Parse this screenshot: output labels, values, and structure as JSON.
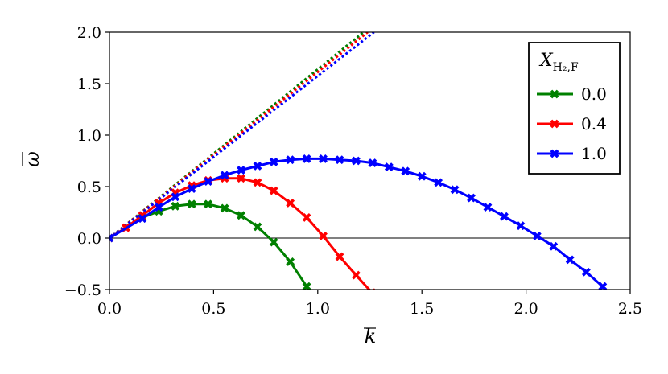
{
  "chart_data": {
    "type": "line",
    "xlabel": "k",
    "ylabel": "ω",
    "xlim": [
      0.0,
      2.5
    ],
    "ylim": [
      -0.5,
      2.0
    ],
    "xticks": [
      "0.0",
      "0.5",
      "1.0",
      "1.5",
      "2.0",
      "2.5"
    ],
    "yticks": [
      "−0.5",
      "0.0",
      "0.5",
      "1.0",
      "1.5",
      "2.0"
    ],
    "grid": false,
    "zero_line": true,
    "legend": {
      "placement": "top-right",
      "title_main": "X",
      "title_sub": "H₂,F"
    },
    "series": [
      {
        "name": "0.0",
        "color": "#008000",
        "marker": "x-filled",
        "x": [
          0.0,
          0.158,
          0.237,
          0.316,
          0.395,
          0.474,
          0.553,
          0.632,
          0.711,
          0.789,
          0.868,
          0.947
        ],
        "y": [
          0.0,
          0.2,
          0.26,
          0.31,
          0.33,
          0.33,
          0.29,
          0.22,
          0.11,
          -0.04,
          -0.23,
          -0.47
        ],
        "asymptote": {
          "x": [
            0.0,
            1.22
          ],
          "y": [
            0.0,
            2.0
          ]
        }
      },
      {
        "name": "0.4",
        "color": "#ff0000",
        "marker": "x-filled",
        "x": [
          0.0,
          0.079,
          0.158,
          0.237,
          0.316,
          0.395,
          0.474,
          0.553,
          0.632,
          0.711,
          0.789,
          0.868,
          0.947,
          1.026,
          1.105,
          1.184,
          1.26
        ],
        "y": [
          0.0,
          0.1,
          0.22,
          0.34,
          0.44,
          0.51,
          0.56,
          0.58,
          0.58,
          0.54,
          0.46,
          0.34,
          0.2,
          0.02,
          -0.18,
          -0.36,
          -0.53
        ],
        "asymptote": {
          "x": [
            0.0,
            1.24
          ],
          "y": [
            0.0,
            2.0
          ]
        }
      },
      {
        "name": "1.0",
        "color": "#0000ff",
        "marker": "x-filled",
        "x": [
          0.0,
          0.158,
          0.237,
          0.316,
          0.395,
          0.474,
          0.553,
          0.632,
          0.711,
          0.789,
          0.868,
          0.947,
          1.026,
          1.105,
          1.184,
          1.263,
          1.342,
          1.421,
          1.5,
          1.579,
          1.658,
          1.737,
          1.816,
          1.895,
          1.974,
          2.053,
          2.132,
          2.211,
          2.289,
          2.368
        ],
        "y": [
          0.0,
          0.19,
          0.3,
          0.4,
          0.48,
          0.55,
          0.61,
          0.66,
          0.7,
          0.74,
          0.76,
          0.77,
          0.77,
          0.76,
          0.75,
          0.73,
          0.69,
          0.65,
          0.6,
          0.54,
          0.47,
          0.39,
          0.3,
          0.21,
          0.12,
          0.02,
          -0.08,
          -0.21,
          -0.33,
          -0.47
        ],
        "asymptote": {
          "x": [
            0.0,
            1.27
          ],
          "y": [
            0.0,
            2.0
          ]
        }
      }
    ]
  }
}
